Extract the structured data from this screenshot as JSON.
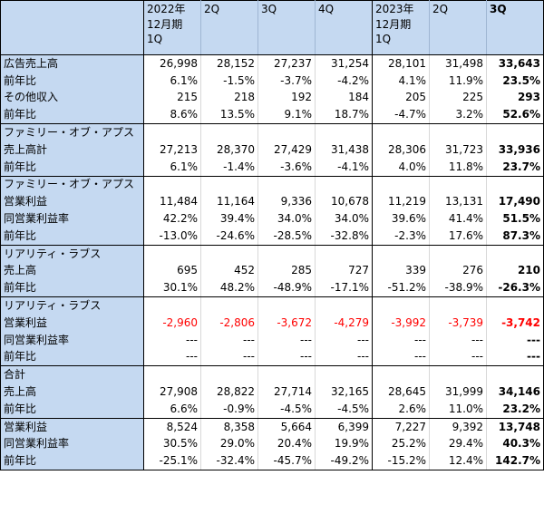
{
  "header": {
    "label": "",
    "cols": [
      {
        "lines": [
          "2022年",
          "12月期",
          "1Q"
        ]
      },
      {
        "lines": [
          "2Q"
        ]
      },
      {
        "lines": [
          "3Q"
        ]
      },
      {
        "lines": [
          "4Q"
        ]
      },
      {
        "lines": [
          "2023年",
          "12月期",
          "1Q"
        ]
      },
      {
        "lines": [
          "2Q"
        ]
      },
      {
        "lines": [
          "3Q"
        ]
      }
    ]
  },
  "rows": [
    {
      "label": "広告売上高",
      "values": [
        "26,998",
        "28,152",
        "27,237",
        "31,254",
        "28,101",
        "31,498",
        "33,643"
      ],
      "top": true,
      "bottom": false,
      "red": false
    },
    {
      "label": "前年比",
      "values": [
        "6.1%",
        "-1.5%",
        "-3.7%",
        "-4.2%",
        "4.1%",
        "11.9%",
        "23.5%"
      ],
      "top": false,
      "bottom": false,
      "red": false
    },
    {
      "label": "その他収入",
      "values": [
        "215",
        "218",
        "192",
        "184",
        "205",
        "225",
        "293"
      ],
      "top": false,
      "bottom": false,
      "red": false
    },
    {
      "label": "前年比",
      "values": [
        "8.6%",
        "13.5%",
        "9.1%",
        "18.7%",
        "-4.7%",
        "3.2%",
        "52.6%"
      ],
      "top": false,
      "bottom": true,
      "red": false
    },
    {
      "label": "ファミリー・オブ・アプス",
      "values": [
        "",
        "",
        "",
        "",
        "",
        "",
        ""
      ],
      "top": true,
      "bottom": false,
      "red": false
    },
    {
      "label": "売上高計",
      "values": [
        "27,213",
        "28,370",
        "27,429",
        "31,438",
        "28,306",
        "31,723",
        "33,936"
      ],
      "top": false,
      "bottom": false,
      "red": false
    },
    {
      "label": "前年比",
      "values": [
        "6.1%",
        "-1.4%",
        "-3.6%",
        "-4.1%",
        "4.0%",
        "11.8%",
        "23.7%"
      ],
      "top": false,
      "bottom": true,
      "red": false
    },
    {
      "label": "ファミリー・オブ・アプス",
      "values": [
        "",
        "",
        "",
        "",
        "",
        "",
        ""
      ],
      "top": true,
      "bottom": false,
      "red": false
    },
    {
      "label": "営業利益",
      "values": [
        "11,484",
        "11,164",
        "9,336",
        "10,678",
        "11,219",
        "13,131",
        "17,490"
      ],
      "top": false,
      "bottom": false,
      "red": false
    },
    {
      "label": "同営業利益率",
      "values": [
        "42.2%",
        "39.4%",
        "34.0%",
        "34.0%",
        "39.6%",
        "41.4%",
        "51.5%"
      ],
      "top": false,
      "bottom": false,
      "red": false
    },
    {
      "label": "前年比",
      "values": [
        "-13.0%",
        "-24.6%",
        "-28.5%",
        "-32.8%",
        "-2.3%",
        "17.6%",
        "87.3%"
      ],
      "top": false,
      "bottom": true,
      "red": false
    },
    {
      "label": "リアリティ・ラブス",
      "values": [
        "",
        "",
        "",
        "",
        "",
        "",
        ""
      ],
      "top": true,
      "bottom": false,
      "red": false
    },
    {
      "label": "売上高",
      "values": [
        "695",
        "452",
        "285",
        "727",
        "339",
        "276",
        "210"
      ],
      "top": false,
      "bottom": false,
      "red": false
    },
    {
      "label": "前年比",
      "values": [
        "30.1%",
        "48.2%",
        "-48.9%",
        "-17.1%",
        "-51.2%",
        "-38.9%",
        "-26.3%"
      ],
      "top": false,
      "bottom": true,
      "red": false
    },
    {
      "label": "リアリティ・ラブス",
      "values": [
        "",
        "",
        "",
        "",
        "",
        "",
        ""
      ],
      "top": true,
      "bottom": false,
      "red": false
    },
    {
      "label": "営業利益",
      "values": [
        "-2,960",
        "-2,806",
        "-3,672",
        "-4,279",
        "-3,992",
        "-3,739",
        "-3,742"
      ],
      "top": false,
      "bottom": false,
      "red": true
    },
    {
      "label": "同営業利益率",
      "values": [
        "---",
        "---",
        "---",
        "---",
        "---",
        "---",
        "---"
      ],
      "top": false,
      "bottom": false,
      "red": false
    },
    {
      "label": "前年比",
      "values": [
        "---",
        "---",
        "---",
        "---",
        "---",
        "---",
        "---"
      ],
      "top": false,
      "bottom": true,
      "red": false
    },
    {
      "label": "合計",
      "values": [
        "",
        "",
        "",
        "",
        "",
        "",
        ""
      ],
      "top": true,
      "bottom": false,
      "red": false
    },
    {
      "label": "売上高",
      "values": [
        "27,908",
        "28,822",
        "27,714",
        "32,165",
        "28,645",
        "31,999",
        "34,146"
      ],
      "top": false,
      "bottom": false,
      "red": false
    },
    {
      "label": "前年比",
      "values": [
        "6.6%",
        "-0.9%",
        "-4.5%",
        "-4.5%",
        "2.6%",
        "11.0%",
        "23.2%"
      ],
      "top": false,
      "bottom": true,
      "red": false
    },
    {
      "label": "営業利益",
      "values": [
        "8,524",
        "8,358",
        "5,664",
        "6,399",
        "7,227",
        "9,392",
        "13,748"
      ],
      "top": true,
      "bottom": false,
      "red": false
    },
    {
      "label": "同営業利益率",
      "values": [
        "30.5%",
        "29.0%",
        "20.4%",
        "19.9%",
        "25.2%",
        "29.4%",
        "40.3%"
      ],
      "top": false,
      "bottom": false,
      "red": false
    },
    {
      "label": "前年比",
      "values": [
        "-25.1%",
        "-32.4%",
        "-45.7%",
        "-49.2%",
        "-15.2%",
        "12.4%",
        "142.7%"
      ],
      "top": false,
      "bottom": true,
      "red": false
    }
  ],
  "colors": {
    "label_bg": "#c5d9f1",
    "negative": "#ff0000",
    "border": "#000000"
  }
}
